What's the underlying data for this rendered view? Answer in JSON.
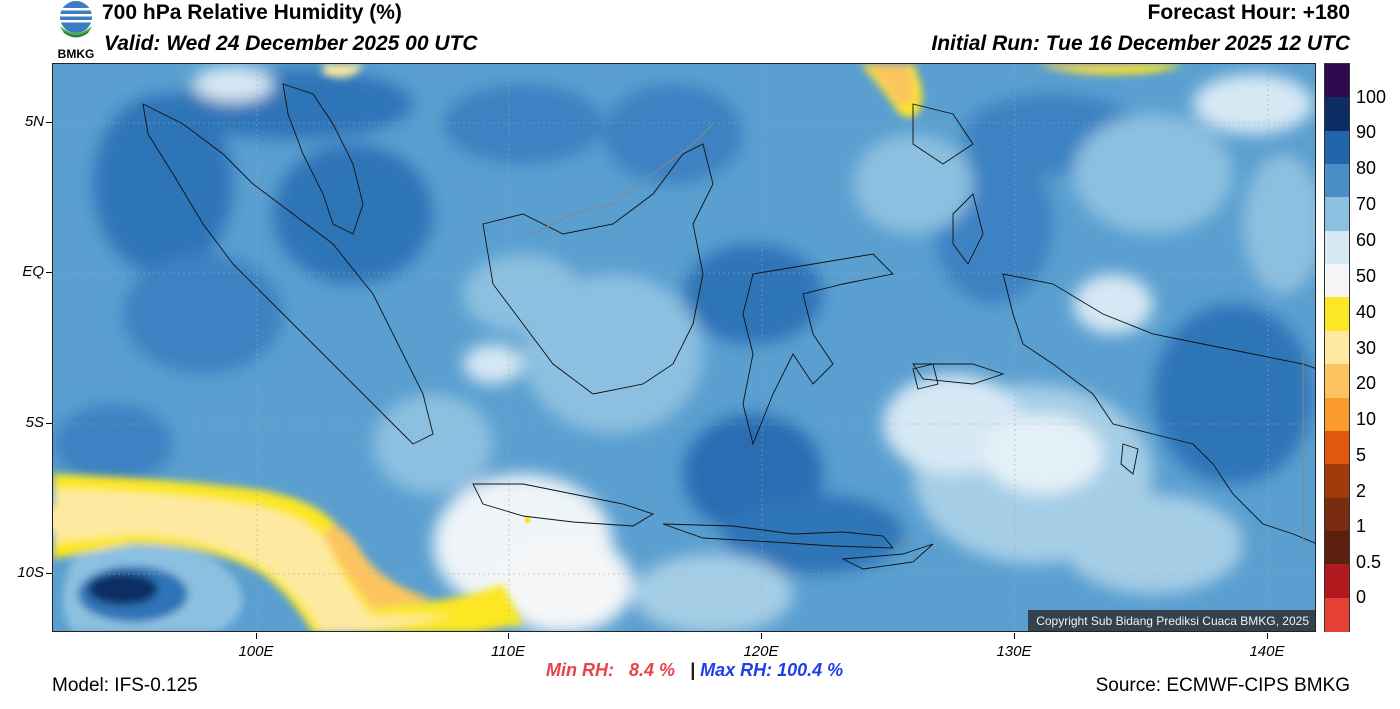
{
  "header": {
    "title": "700 hPa Relative Humidity (%)",
    "valid": "Valid: Wed 24 December 2025 00 UTC",
    "forecast_hour": "Forecast Hour: +180",
    "initial_run": "Initial Run: Tue 16 December 2025 12 UTC",
    "logo_text": "BMKG"
  },
  "axes": {
    "lat_labels": [
      "5N",
      "EQ",
      "5S",
      "10S"
    ],
    "lon_labels": [
      "100E",
      "110E",
      "120E",
      "130E",
      "140E"
    ]
  },
  "colorbar": {
    "labels": [
      "100",
      "90",
      "80",
      "70",
      "60",
      "50",
      "40",
      "30",
      "20",
      "10",
      "5",
      "2",
      "1",
      "0.5",
      "0"
    ],
    "colors": [
      "#2d0a4e",
      "#0b2d63",
      "#2166ac",
      "#4a8ec8",
      "#8cc0e0",
      "#d6e8f4",
      "#f6f6f6",
      "#fde724",
      "#fee9a0",
      "#fcc45f",
      "#fb9b2c",
      "#e0580e",
      "#a33a0c",
      "#7a2c10",
      "#5c200e",
      "#b01a1e",
      "#e84034"
    ]
  },
  "footer": {
    "model": "Model: IFS-0.125",
    "source": "Source: ECMWF-CIPS BMKG",
    "min_rh_label": "Min RH:",
    "min_rh_value": "8.4 %",
    "separator": "|",
    "max_rh_label": "Max RH:",
    "max_rh_value": "100.4 %"
  },
  "copyright": "Copyright Sub Bidang Prediksi Cuaca BMKG, 2025"
}
